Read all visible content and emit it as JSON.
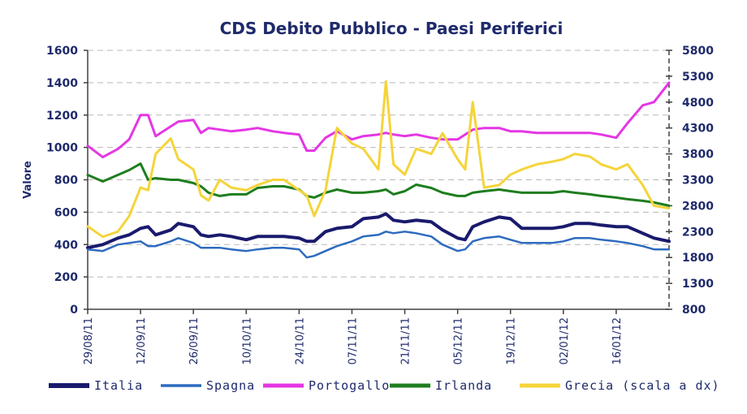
{
  "chart_data": {
    "type": "line",
    "title": "CDS Debito Pubblico - Paesi Periferici",
    "ylabel": "Valore",
    "ylim": [
      0,
      1600
    ],
    "yticks": [
      0,
      200,
      400,
      600,
      800,
      1000,
      1200,
      1400,
      1600
    ],
    "y2lim": [
      800,
      5800
    ],
    "y2ticks": [
      800,
      1300,
      1800,
      2300,
      2800,
      3300,
      3800,
      4300,
      4800,
      5300,
      5800
    ],
    "grid": true,
    "legend_position": "bottom",
    "x_range": [
      "29/08/11",
      "30/01/12"
    ],
    "xticks": [
      "29/08/11",
      "12/09/11",
      "26/09/11",
      "10/10/11",
      "24/10/11",
      "07/11/11",
      "21/11/11",
      "05/12/11",
      "19/12/11",
      "02/01/12",
      "16/01/12"
    ],
    "x": [
      "29/08/11",
      "02/09/11",
      "06/09/11",
      "09/09/11",
      "12/09/11",
      "14/09/11",
      "16/09/11",
      "20/09/11",
      "22/09/11",
      "26/09/11",
      "28/09/11",
      "30/09/11",
      "03/10/11",
      "06/10/11",
      "10/10/11",
      "13/10/11",
      "17/10/11",
      "20/10/11",
      "24/10/11",
      "26/10/11",
      "28/10/11",
      "31/10/11",
      "03/11/11",
      "07/11/11",
      "10/11/11",
      "14/11/11",
      "16/11/11",
      "18/11/11",
      "21/11/11",
      "24/11/11",
      "28/11/11",
      "01/12/11",
      "05/12/11",
      "07/12/11",
      "09/12/11",
      "12/12/11",
      "16/12/11",
      "19/12/11",
      "22/12/11",
      "26/12/11",
      "30/12/11",
      "02/01/12",
      "05/01/12",
      "09/01/12",
      "12/01/12",
      "16/01/12",
      "19/01/12",
      "23/01/12",
      "26/01/12",
      "30/01/12"
    ],
    "series": [
      {
        "name": "Italia",
        "color": "#1a1a6e",
        "axis": "left",
        "values": [
          380,
          400,
          440,
          460,
          500,
          510,
          460,
          490,
          530,
          510,
          460,
          450,
          460,
          450,
          430,
          450,
          450,
          450,
          440,
          420,
          420,
          480,
          500,
          510,
          560,
          570,
          590,
          550,
          540,
          550,
          540,
          490,
          440,
          430,
          510,
          540,
          570,
          560,
          500,
          500,
          500,
          510,
          530,
          530,
          520,
          510,
          510,
          470,
          440,
          420
        ]
      },
      {
        "name": "Spagna",
        "color": "#2e6bbf",
        "axis": "left",
        "values": [
          370,
          360,
          400,
          410,
          420,
          390,
          390,
          420,
          440,
          410,
          380,
          380,
          380,
          370,
          360,
          370,
          380,
          380,
          370,
          320,
          330,
          360,
          390,
          420,
          450,
          460,
          480,
          470,
          480,
          470,
          450,
          400,
          360,
          370,
          420,
          440,
          450,
          430,
          410,
          410,
          410,
          420,
          440,
          440,
          430,
          420,
          410,
          390,
          370,
          370
        ]
      },
      {
        "name": "Portogallo",
        "color": "#e436e4",
        "axis": "left",
        "values": [
          1010,
          940,
          990,
          1050,
          1200,
          1200,
          1070,
          1130,
          1160,
          1170,
          1090,
          1120,
          1110,
          1100,
          1110,
          1120,
          1100,
          1090,
          1080,
          980,
          980,
          1060,
          1100,
          1050,
          1070,
          1080,
          1090,
          1080,
          1070,
          1080,
          1060,
          1050,
          1050,
          1080,
          1110,
          1120,
          1120,
          1100,
          1100,
          1090,
          1090,
          1090,
          1090,
          1090,
          1080,
          1060,
          1150,
          1260,
          1280,
          1400
        ]
      },
      {
        "name": "Irlanda",
        "color": "#1e7d1e",
        "axis": "left",
        "values": [
          830,
          790,
          830,
          860,
          900,
          800,
          810,
          800,
          800,
          780,
          760,
          720,
          700,
          710,
          710,
          750,
          760,
          760,
          740,
          700,
          690,
          720,
          740,
          720,
          720,
          730,
          740,
          710,
          730,
          770,
          750,
          720,
          700,
          700,
          720,
          730,
          740,
          730,
          720,
          720,
          720,
          730,
          720,
          710,
          700,
          690,
          680,
          670,
          660,
          640
        ]
      },
      {
        "name": "Grecia (scala a dx)",
        "color": "#f5d43a",
        "axis": "right",
        "values": [
          2400,
          2200,
          2300,
          2600,
          3150,
          3100,
          3800,
          4100,
          3700,
          3500,
          3000,
          2900,
          3300,
          3150,
          3100,
          3200,
          3300,
          3300,
          3100,
          3000,
          2600,
          3100,
          4300,
          4000,
          3900,
          3500,
          5200,
          3600,
          3400,
          3900,
          3800,
          4200,
          3700,
          3500,
          4800,
          3150,
          3200,
          3400,
          3500,
          3600,
          3650,
          3700,
          3800,
          3750,
          3600,
          3500,
          3600,
          3200,
          2800,
          2750
        ]
      }
    ]
  }
}
